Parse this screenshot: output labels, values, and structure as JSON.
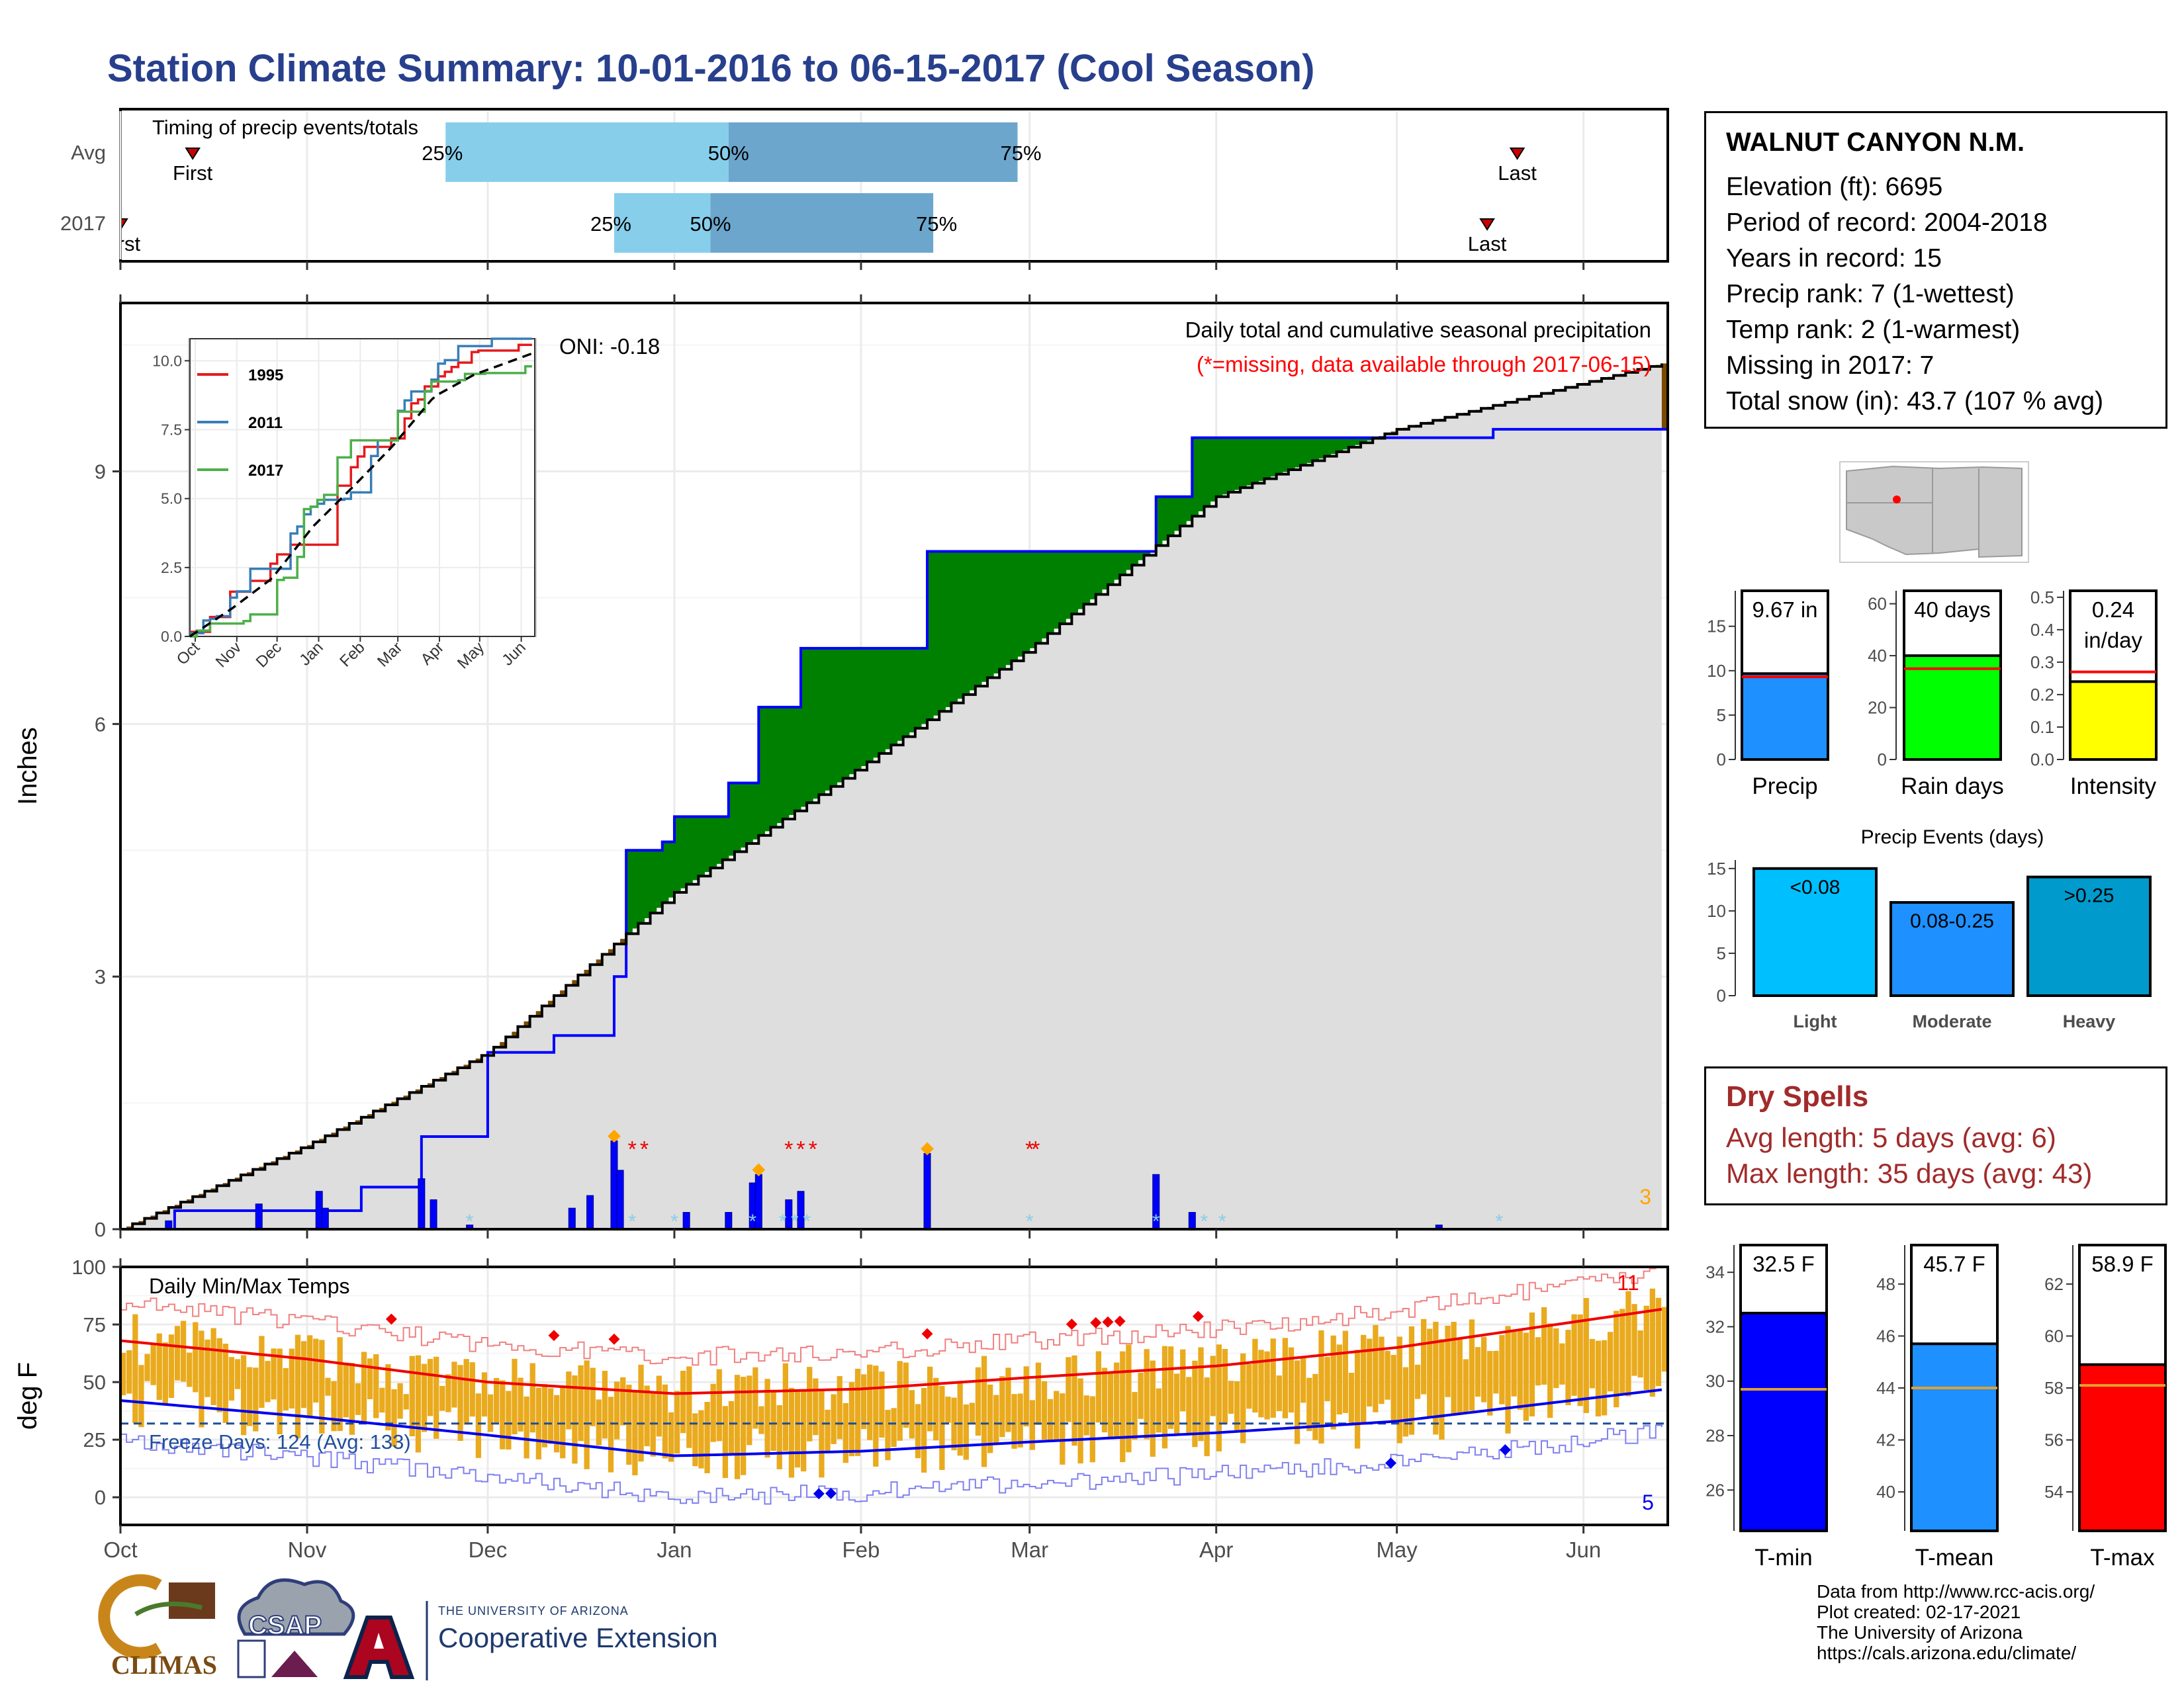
{
  "title": "Station Climate Summary: 10-01-2016 to 06-15-2017 (Cool Season)",
  "colors": {
    "title": "#273f8c",
    "above_normal": "#008000",
    "below_normal": "#7a4a00",
    "normal_fill": "#dedede",
    "obs_line": "#0000ff",
    "temp_bar": "#e9aa1e",
    "tmax_line": "#ee0000",
    "tmin_line": "#0000ee"
  },
  "timing": {
    "title": "Timing of precip events/totals",
    "rows": [
      {
        "label": "Avg",
        "p25": "25%",
        "p50": "50%",
        "p75": "75%",
        "first": "First",
        "last": "Last"
      },
      {
        "label": "2017",
        "p25": "25%",
        "p50": "50%",
        "p75": "75%",
        "first": "First",
        "last": "Last"
      }
    ]
  },
  "precip_panel": {
    "title": "Daily total and cumulative seasonal precipitation",
    "subtitle": "(*=missing, data available through 2017-06-15)",
    "ylabel": "Inches",
    "oni": "ONI: -0.18",
    "corner_count": "3",
    "yticks": [
      "0",
      "3",
      "6",
      "9"
    ]
  },
  "inset": {
    "yticks": [
      "0.0",
      "2.5",
      "5.0",
      "7.5",
      "10.0"
    ],
    "months": [
      "Oct",
      "Nov",
      "Dec",
      "Jan",
      "Feb",
      "Mar",
      "Apr",
      "May",
      "Jun"
    ],
    "legend": [
      {
        "name": "1995",
        "color": "#e41a1c"
      },
      {
        "name": "2011",
        "color": "#377eb8"
      },
      {
        "name": "2017",
        "color": "#4daf4a"
      }
    ]
  },
  "temp_panel": {
    "title": "Daily Min/Max Temps",
    "ylabel": "deg F",
    "freeze": "Freeze Days: 124 (Avg: 133)",
    "count_hot": "11",
    "count_cold": "5",
    "yticks": [
      "0",
      "25",
      "50",
      "75",
      "100"
    ]
  },
  "x_months": [
    "Oct",
    "Nov",
    "Dec",
    "Jan",
    "Feb",
    "Mar",
    "Apr",
    "May",
    "Jun"
  ],
  "station": {
    "name": "WALNUT CANYON N.M.",
    "elevation": "Elevation (ft): 6695",
    "period": "Period of record: 2004-2018",
    "years": "Years in record: 15",
    "precip_rank": "Precip rank: 7 (1-wettest)",
    "temp_rank": "Temp rank: 2 (1-warmest)",
    "missing": "Missing in 2017: 7",
    "snow": "Total snow (in): 43.7 (107 % avg)"
  },
  "precip_bars": {
    "precip": {
      "label": "Precip",
      "value_text": "9.67 in",
      "value": 9.67,
      "avg": 9.3,
      "yticks": [
        "0",
        "5",
        "10",
        "15"
      ],
      "ymax": 19
    },
    "rain_days": {
      "label": "Rain days",
      "value_text": "40 days",
      "value": 40,
      "avg": 35,
      "yticks": [
        "0",
        "20",
        "40",
        "60"
      ],
      "ymax": 65
    },
    "intensity": {
      "label": "Intensity",
      "value_text": "0.24",
      "value_text2": "in/day",
      "value": 0.24,
      "avg": 0.27,
      "yticks": [
        "0.0",
        "0.1",
        "0.2",
        "0.3",
        "0.4",
        "0.5"
      ],
      "ymax": 0.52
    }
  },
  "events": {
    "title": "Precip Events (days)",
    "yticks": [
      "0",
      "5",
      "10",
      "15"
    ],
    "bars": [
      {
        "label": "Light",
        "text": "<0.08",
        "value": 15
      },
      {
        "label": "Moderate",
        "text": "0.08-0.25",
        "value": 11
      },
      {
        "label": "Heavy",
        "text": ">0.25",
        "value": 14
      }
    ]
  },
  "dry_spells": {
    "title": "Dry Spells",
    "avg": "Avg length: 5 days (avg: 6)",
    "max": "Max length: 35 days (avg: 43)"
  },
  "temp_bars": [
    {
      "label": "T-min",
      "text": "32.5 F",
      "value": 32.5,
      "avg": 29.7,
      "ymin": 24.5,
      "ymax": 35,
      "yticks": [
        "26",
        "28",
        "30",
        "32",
        "34"
      ],
      "color": "#0000ff"
    },
    {
      "label": "T-mean",
      "text": "45.7 F",
      "value": 45.7,
      "avg": 44.0,
      "ymin": 38.5,
      "ymax": 49.5,
      "yticks": [
        "40",
        "42",
        "44",
        "46",
        "48"
      ],
      "color": "#1e90ff"
    },
    {
      "label": "T-max",
      "text": "58.9 F",
      "value": 58.9,
      "avg": 58.1,
      "ymin": 52.5,
      "ymax": 63.5,
      "yticks": [
        "54",
        "56",
        "58",
        "60",
        "62"
      ],
      "color": "#ff0000"
    }
  ],
  "footer": {
    "line1": "Data from http://www.rcc-acis.org/",
    "line2": "Plot created: 02-17-2021",
    "line3": "The University of Arizona",
    "line4": "https://cals.arizona.edu/climate/"
  },
  "logos": {
    "climas": "CLIMAS",
    "csap": "CSAP",
    "ua_small": "THE UNIVERSITY OF ARIZONA",
    "ua_big": "Cooperative Extension"
  },
  "chart_data": [
    {
      "type": "area",
      "title": "Daily total and cumulative seasonal precipitation",
      "ylabel": "Inches",
      "ylim": [
        0,
        11
      ],
      "x_range": [
        "2016-10-01",
        "2017-06-15"
      ],
      "observed_cumulative": [
        {
          "date": "2016-10-01",
          "value": 0.0
        },
        {
          "date": "2016-10-10",
          "value": 0.22
        },
        {
          "date": "2016-11-10",
          "value": 0.5
        },
        {
          "date": "2016-11-20",
          "value": 1.1
        },
        {
          "date": "2016-12-01",
          "value": 2.1
        },
        {
          "date": "2016-12-12",
          "value": 2.3
        },
        {
          "date": "2016-12-22",
          "value": 3.0
        },
        {
          "date": "2016-12-24",
          "value": 4.5
        },
        {
          "date": "2016-12-30",
          "value": 4.6
        },
        {
          "date": "2017-01-01",
          "value": 4.9
        },
        {
          "date": "2017-01-10",
          "value": 5.3
        },
        {
          "date": "2017-01-15",
          "value": 6.2
        },
        {
          "date": "2017-01-22",
          "value": 6.9
        },
        {
          "date": "2017-02-12",
          "value": 8.05
        },
        {
          "date": "2017-03-10",
          "value": 8.05
        },
        {
          "date": "2017-03-22",
          "value": 8.7
        },
        {
          "date": "2017-03-28",
          "value": 9.4
        },
        {
          "date": "2017-05-17",
          "value": 9.5
        },
        {
          "date": "2017-06-15",
          "value": 9.67
        }
      ],
      "normal_cumulative": [
        {
          "date": "2016-10-01",
          "value": 0.0
        },
        {
          "date": "2016-11-01",
          "value": 1.0
        },
        {
          "date": "2016-12-01",
          "value": 2.1
        },
        {
          "date": "2017-01-01",
          "value": 4.0
        },
        {
          "date": "2017-02-01",
          "value": 5.5
        },
        {
          "date": "2017-03-01",
          "value": 6.9
        },
        {
          "date": "2017-04-01",
          "value": 8.7
        },
        {
          "date": "2017-05-01",
          "value": 9.5
        },
        {
          "date": "2017-06-15",
          "value": 10.3
        }
      ],
      "daily_precip": [
        {
          "date": "2016-10-09",
          "value": 0.1
        },
        {
          "date": "2016-10-24",
          "value": 0.3
        },
        {
          "date": "2016-11-03",
          "value": 0.45
        },
        {
          "date": "2016-11-04",
          "value": 0.25
        },
        {
          "date": "2016-11-20",
          "value": 0.6
        },
        {
          "date": "2016-11-22",
          "value": 0.35
        },
        {
          "date": "2016-11-28",
          "value": 0.05
        },
        {
          "date": "2016-12-15",
          "value": 0.25
        },
        {
          "date": "2016-12-18",
          "value": 0.4
        },
        {
          "date": "2016-12-22",
          "value": 1.05
        },
        {
          "date": "2016-12-23",
          "value": 0.7
        },
        {
          "date": "2017-01-03",
          "value": 0.2
        },
        {
          "date": "2017-01-10",
          "value": 0.2
        },
        {
          "date": "2017-01-14",
          "value": 0.55
        },
        {
          "date": "2017-01-15",
          "value": 0.65
        },
        {
          "date": "2017-01-20",
          "value": 0.35
        },
        {
          "date": "2017-01-22",
          "value": 0.45
        },
        {
          "date": "2017-02-12",
          "value": 0.9
        },
        {
          "date": "2017-03-22",
          "value": 0.65
        },
        {
          "date": "2017-03-28",
          "value": 0.2
        },
        {
          "date": "2017-05-08",
          "value": 0.05
        }
      ]
    },
    {
      "type": "line",
      "title": "Daily Min/Max Temps",
      "ylabel": "deg F",
      "ylim": [
        -10,
        100
      ],
      "series": [
        {
          "name": "Avg max",
          "x": [
            "2016-10-01",
            "2016-11-01",
            "2016-12-01",
            "2017-01-01",
            "2017-02-01",
            "2017-03-01",
            "2017-04-01",
            "2017-05-01",
            "2017-06-15"
          ],
          "values": [
            68,
            60,
            50,
            45,
            47,
            52,
            57,
            65,
            82
          ]
        },
        {
          "name": "Avg min",
          "x": [
            "2016-10-01",
            "2016-11-01",
            "2016-12-01",
            "2017-01-01",
            "2017-02-01",
            "2017-03-01",
            "2017-04-01",
            "2017-05-01",
            "2017-06-15"
          ],
          "values": [
            42,
            35,
            27,
            18,
            20,
            24,
            28,
            33,
            47
          ]
        }
      ],
      "annotations": [
        "Freeze Days: 124 (Avg: 133)",
        "11",
        "5"
      ]
    },
    {
      "type": "bar",
      "title": "Precip Events (days)",
      "categories": [
        "Light",
        "Moderate",
        "Heavy"
      ],
      "values": [
        15,
        11,
        14
      ],
      "ylim": [
        0,
        16
      ]
    },
    {
      "type": "bar",
      "categories": [
        "Precip",
        "Rain days",
        "Intensity"
      ],
      "values": [
        9.67,
        40,
        0.24
      ]
    },
    {
      "type": "bar",
      "categories": [
        "T-min",
        "T-mean",
        "T-max"
      ],
      "values": [
        32.5,
        45.7,
        58.9
      ]
    }
  ]
}
